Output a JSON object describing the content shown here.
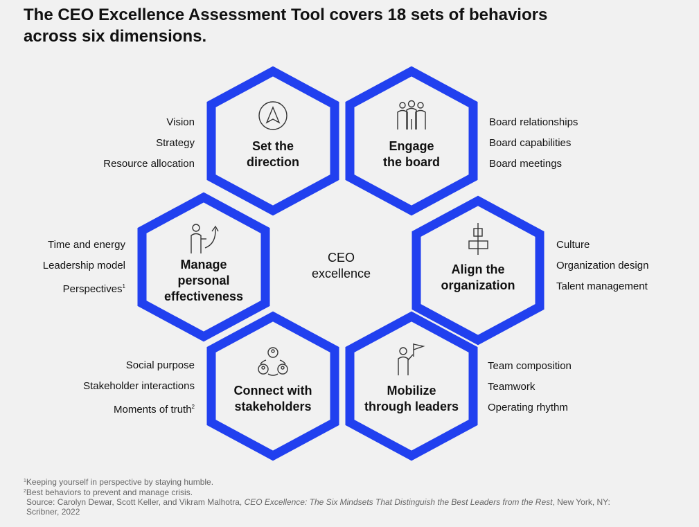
{
  "title": {
    "line1": "The CEO Excellence Assessment Tool covers 18 sets of behaviors",
    "line2": "across six dimensions."
  },
  "colors": {
    "hex_stroke": "#2140ef",
    "background": "#f1f1f1",
    "text": "#111111",
    "footnote": "#666666"
  },
  "center": {
    "line1": "CEO",
    "line2": "excellence"
  },
  "dimensions": [
    {
      "icon": "compass-arrow-icon",
      "label_lines": [
        "Set the",
        "direction"
      ],
      "behaviors": [
        "Vision",
        "Strategy",
        "Resource allocation"
      ]
    },
    {
      "icon": "board-people-icon",
      "label_lines": [
        "Engage",
        "the board"
      ],
      "behaviors": [
        "Board relationships",
        "Board capabilities",
        "Board meetings"
      ]
    },
    {
      "icon": "person-growth-icon",
      "label_lines": [
        "Manage",
        "personal",
        "effectiveness"
      ],
      "behaviors": [
        "Time and energy",
        "Leadership model",
        "Perspectives"
      ],
      "footnote_marks": [
        "",
        "",
        "1"
      ]
    },
    {
      "icon": "alignment-blocks-icon",
      "label_lines": [
        "Align the",
        "organization"
      ],
      "behaviors": [
        "Culture",
        "Organization design",
        "Talent management"
      ]
    },
    {
      "icon": "stakeholder-network-icon",
      "label_lines": [
        "Connect with",
        "stakeholders"
      ],
      "behaviors": [
        "Social purpose",
        "Stakeholder interactions",
        "Moments of truth"
      ],
      "footnote_marks": [
        "",
        "",
        "2"
      ]
    },
    {
      "icon": "leader-flag-icon",
      "label_lines": [
        "Mobilize",
        "through leaders"
      ],
      "behaviors": [
        "Team composition",
        "Teamwork",
        "Operating rhythm"
      ]
    }
  ],
  "footnotes": {
    "note1_mark": "1",
    "note1": "Keeping yourself in perspective by staying humble.",
    "note2_mark": "2",
    "note2": "Best behaviors to prevent and manage crisis.",
    "source_prefix": "Source: Carolyn Dewar, Scott Keller, and Vikram Malhotra, ",
    "source_title": "CEO Excellence: The Six Mindsets That Distinguish the Best Leaders from the Rest",
    "source_suffix": ", New York, NY:",
    "source_line2": "Scribner, 2022"
  }
}
